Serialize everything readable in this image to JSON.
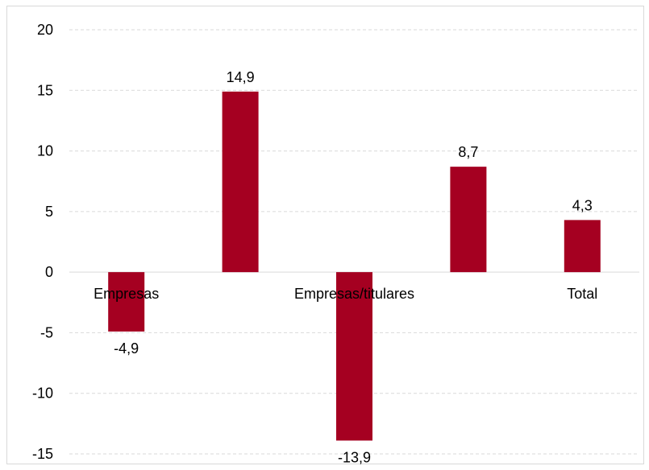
{
  "chart_data": {
    "type": "bar",
    "categories": [
      "Empresas",
      "",
      "Empresas/titulares",
      "",
      "Total"
    ],
    "values": [
      -4.9,
      14.9,
      -13.9,
      8.7,
      4.3
    ],
    "data_labels": [
      "-4,9",
      "14,9",
      "-13,9",
      "8,7",
      "4,3"
    ],
    "y_ticks": [
      "20",
      "15",
      "10",
      "5",
      "0",
      "-5",
      "-10",
      "-15"
    ],
    "y_tick_values": [
      20,
      15,
      10,
      5,
      0,
      -5,
      -10,
      -15
    ],
    "ylim": [
      -15,
      20
    ],
    "title": "",
    "xlabel": "",
    "ylabel": "",
    "grid": "horizontal dashed",
    "legend": "none",
    "bar_color": "#a50021",
    "grid_color": "#d9d9d9"
  }
}
